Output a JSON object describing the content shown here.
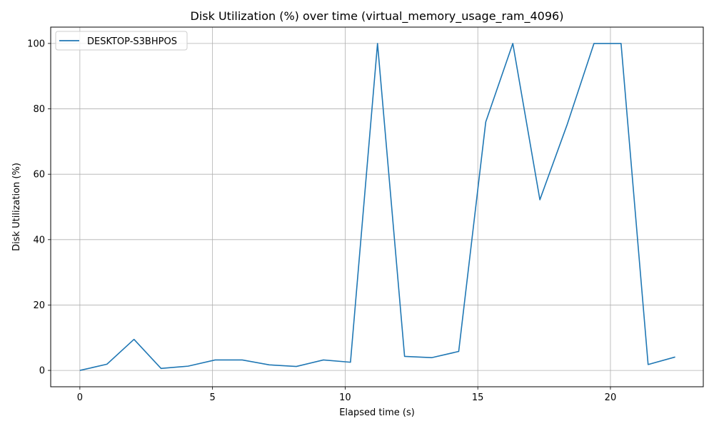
{
  "chart_data": {
    "type": "line",
    "title": "Disk Utilization (%) over time (virtual_memory_usage_ram_4096)",
    "xlabel": "Elapsed time (s)",
    "ylabel": "Disk Utilization (%)",
    "xlim": [
      -1.1,
      23.5
    ],
    "ylim": [
      -5,
      105
    ],
    "xticks": [
      0,
      5,
      10,
      15,
      20
    ],
    "yticks": [
      0,
      20,
      40,
      60,
      80,
      100
    ],
    "grid": true,
    "legend_position": "top-left",
    "series": [
      {
        "name": "DESKTOP-S3BHPOS",
        "color": "#1f77b4",
        "x": [
          0,
          1.02,
          2.04,
          3.06,
          4.08,
          5.1,
          6.12,
          7.14,
          8.16,
          9.18,
          10.2,
          11.22,
          12.24,
          13.26,
          14.28,
          15.3,
          16.32,
          17.34,
          18.36,
          19.38,
          20.4,
          21.42,
          22.44
        ],
        "y": [
          0,
          1.9,
          9.5,
          0.6,
          1.3,
          3.2,
          3.2,
          1.7,
          1.2,
          3.2,
          2.5,
          100,
          4.3,
          3.9,
          5.8,
          76,
          100,
          52.2,
          75,
          100,
          100,
          1.8,
          4.1
        ]
      }
    ]
  }
}
